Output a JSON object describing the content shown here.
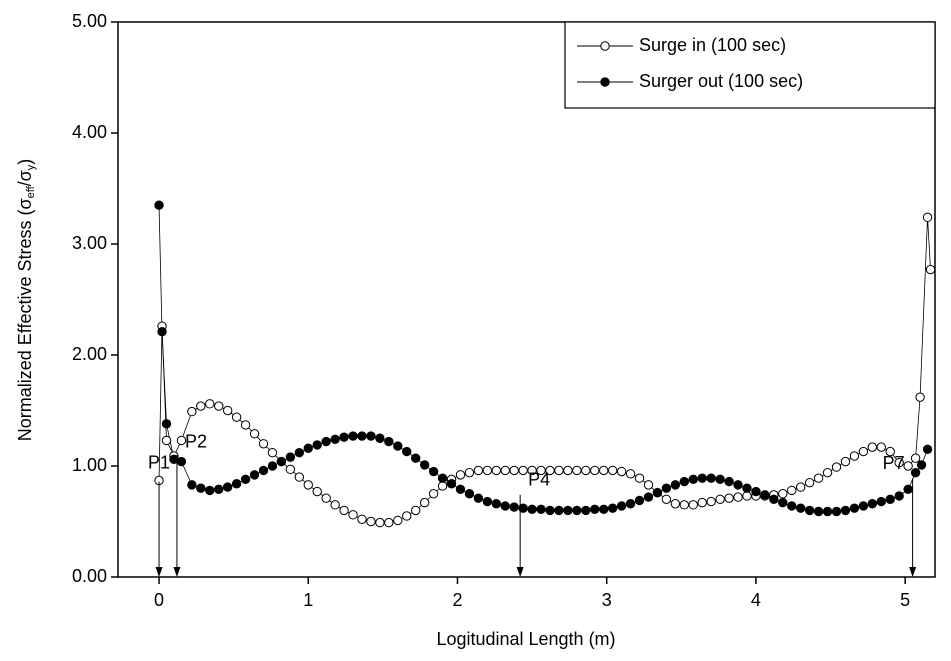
{
  "chart_data": {
    "type": "line",
    "x_label": "Logitudinal Length (m)",
    "y_label_parts": [
      "Normalized Effective Stress  (σ",
      "eff",
      "/σ",
      "y",
      ")"
    ],
    "xlim": [
      -0.275,
      5.2
    ],
    "xticks": [
      0,
      1,
      2,
      3,
      4,
      5
    ],
    "ylim": [
      0,
      5
    ],
    "yticks": [
      {
        "value": 0,
        "label": "0.00"
      },
      {
        "value": 1,
        "label": "1.00"
      },
      {
        "value": 2,
        "label": "2.00"
      },
      {
        "value": 3,
        "label": "3.00"
      },
      {
        "value": 4,
        "label": "4.00"
      },
      {
        "value": 5,
        "label": "5.00"
      }
    ],
    "legend": "upper right",
    "series": [
      {
        "name": "Surge in (100 sec)",
        "color": "#000000",
        "marker": "open",
        "x": [
          0,
          0.02,
          0.05,
          0.1,
          0.15,
          0.22,
          0.28,
          0.34,
          0.4,
          0.46,
          0.52,
          0.58,
          0.64,
          0.7,
          0.76,
          0.82,
          0.88,
          0.94,
          1.0,
          1.06,
          1.12,
          1.18,
          1.24,
          1.3,
          1.36,
          1.42,
          1.48,
          1.54,
          1.6,
          1.66,
          1.72,
          1.78,
          1.84,
          1.9,
          1.96,
          2.02,
          2.08,
          2.14,
          2.2,
          2.26,
          2.32,
          2.38,
          2.44,
          2.5,
          2.56,
          2.62,
          2.68,
          2.74,
          2.8,
          2.86,
          2.92,
          2.98,
          3.04,
          3.1,
          3.16,
          3.22,
          3.28,
          3.34,
          3.4,
          3.46,
          3.52,
          3.58,
          3.64,
          3.7,
          3.76,
          3.82,
          3.88,
          3.94,
          4.0,
          4.06,
          4.12,
          4.18,
          4.24,
          4.3,
          4.36,
          4.42,
          4.48,
          4.54,
          4.6,
          4.66,
          4.72,
          4.78,
          4.84,
          4.9,
          4.96,
          5.02,
          5.07,
          5.1,
          5.15,
          5.17
        ],
        "values": [
          0.87,
          2.26,
          1.23,
          1.09,
          1.23,
          1.49,
          1.54,
          1.56,
          1.54,
          1.5,
          1.44,
          1.37,
          1.29,
          1.2,
          1.12,
          1.04,
          0.97,
          0.9,
          0.83,
          0.77,
          0.71,
          0.65,
          0.6,
          0.56,
          0.52,
          0.5,
          0.49,
          0.49,
          0.51,
          0.55,
          0.6,
          0.67,
          0.75,
          0.82,
          0.88,
          0.92,
          0.94,
          0.96,
          0.96,
          0.96,
          0.96,
          0.96,
          0.96,
          0.96,
          0.96,
          0.96,
          0.96,
          0.96,
          0.96,
          0.96,
          0.96,
          0.96,
          0.96,
          0.95,
          0.93,
          0.89,
          0.83,
          0.76,
          0.7,
          0.66,
          0.65,
          0.65,
          0.67,
          0.68,
          0.7,
          0.71,
          0.72,
          0.73,
          0.73,
          0.73,
          0.74,
          0.75,
          0.78,
          0.81,
          0.85,
          0.89,
          0.94,
          0.99,
          1.04,
          1.09,
          1.13,
          1.17,
          1.17,
          1.13,
          1.03,
          1.0,
          1.07,
          1.62,
          3.24,
          2.77
        ]
      },
      {
        "name": "Surger out (100 sec)",
        "color": "#000000",
        "marker": "filled",
        "x": [
          0,
          0.02,
          0.05,
          0.1,
          0.15,
          0.22,
          0.28,
          0.34,
          0.4,
          0.46,
          0.52,
          0.58,
          0.64,
          0.7,
          0.76,
          0.82,
          0.88,
          0.94,
          1.0,
          1.06,
          1.12,
          1.18,
          1.24,
          1.3,
          1.36,
          1.42,
          1.48,
          1.54,
          1.6,
          1.66,
          1.72,
          1.78,
          1.84,
          1.9,
          1.96,
          2.02,
          2.08,
          2.14,
          2.2,
          2.26,
          2.32,
          2.38,
          2.44,
          2.5,
          2.56,
          2.62,
          2.68,
          2.74,
          2.8,
          2.86,
          2.92,
          2.98,
          3.04,
          3.1,
          3.16,
          3.22,
          3.28,
          3.34,
          3.4,
          3.46,
          3.52,
          3.58,
          3.64,
          3.7,
          3.76,
          3.82,
          3.88,
          3.94,
          4.0,
          4.06,
          4.12,
          4.18,
          4.24,
          4.3,
          4.36,
          4.42,
          4.48,
          4.54,
          4.6,
          4.66,
          4.72,
          4.78,
          4.84,
          4.9,
          4.96,
          5.02,
          5.07,
          5.11,
          5.15
        ],
        "values": [
          3.35,
          2.21,
          1.38,
          1.06,
          1.04,
          0.83,
          0.8,
          0.78,
          0.79,
          0.81,
          0.84,
          0.88,
          0.92,
          0.96,
          1.0,
          1.04,
          1.08,
          1.12,
          1.16,
          1.19,
          1.22,
          1.24,
          1.26,
          1.27,
          1.27,
          1.27,
          1.25,
          1.22,
          1.18,
          1.13,
          1.07,
          1.01,
          0.95,
          0.89,
          0.84,
          0.79,
          0.75,
          0.71,
          0.68,
          0.66,
          0.64,
          0.63,
          0.62,
          0.61,
          0.61,
          0.6,
          0.6,
          0.6,
          0.6,
          0.6,
          0.61,
          0.61,
          0.62,
          0.64,
          0.66,
          0.69,
          0.72,
          0.76,
          0.8,
          0.83,
          0.86,
          0.88,
          0.89,
          0.89,
          0.88,
          0.86,
          0.83,
          0.8,
          0.77,
          0.74,
          0.7,
          0.67,
          0.64,
          0.62,
          0.6,
          0.59,
          0.59,
          0.59,
          0.6,
          0.62,
          0.64,
          0.66,
          0.68,
          0.7,
          0.73,
          0.79,
          0.94,
          1.01,
          1.15
        ]
      }
    ],
    "annotations": [
      {
        "text": "P1",
        "x": 0,
        "y": 0.86
      },
      {
        "text": "P2",
        "x": 0.12,
        "y": 1.1
      },
      {
        "text": "P4",
        "x": 2.42,
        "y": 0.74
      },
      {
        "text": "P7",
        "x": 5.05,
        "y": 0.89
      }
    ]
  }
}
